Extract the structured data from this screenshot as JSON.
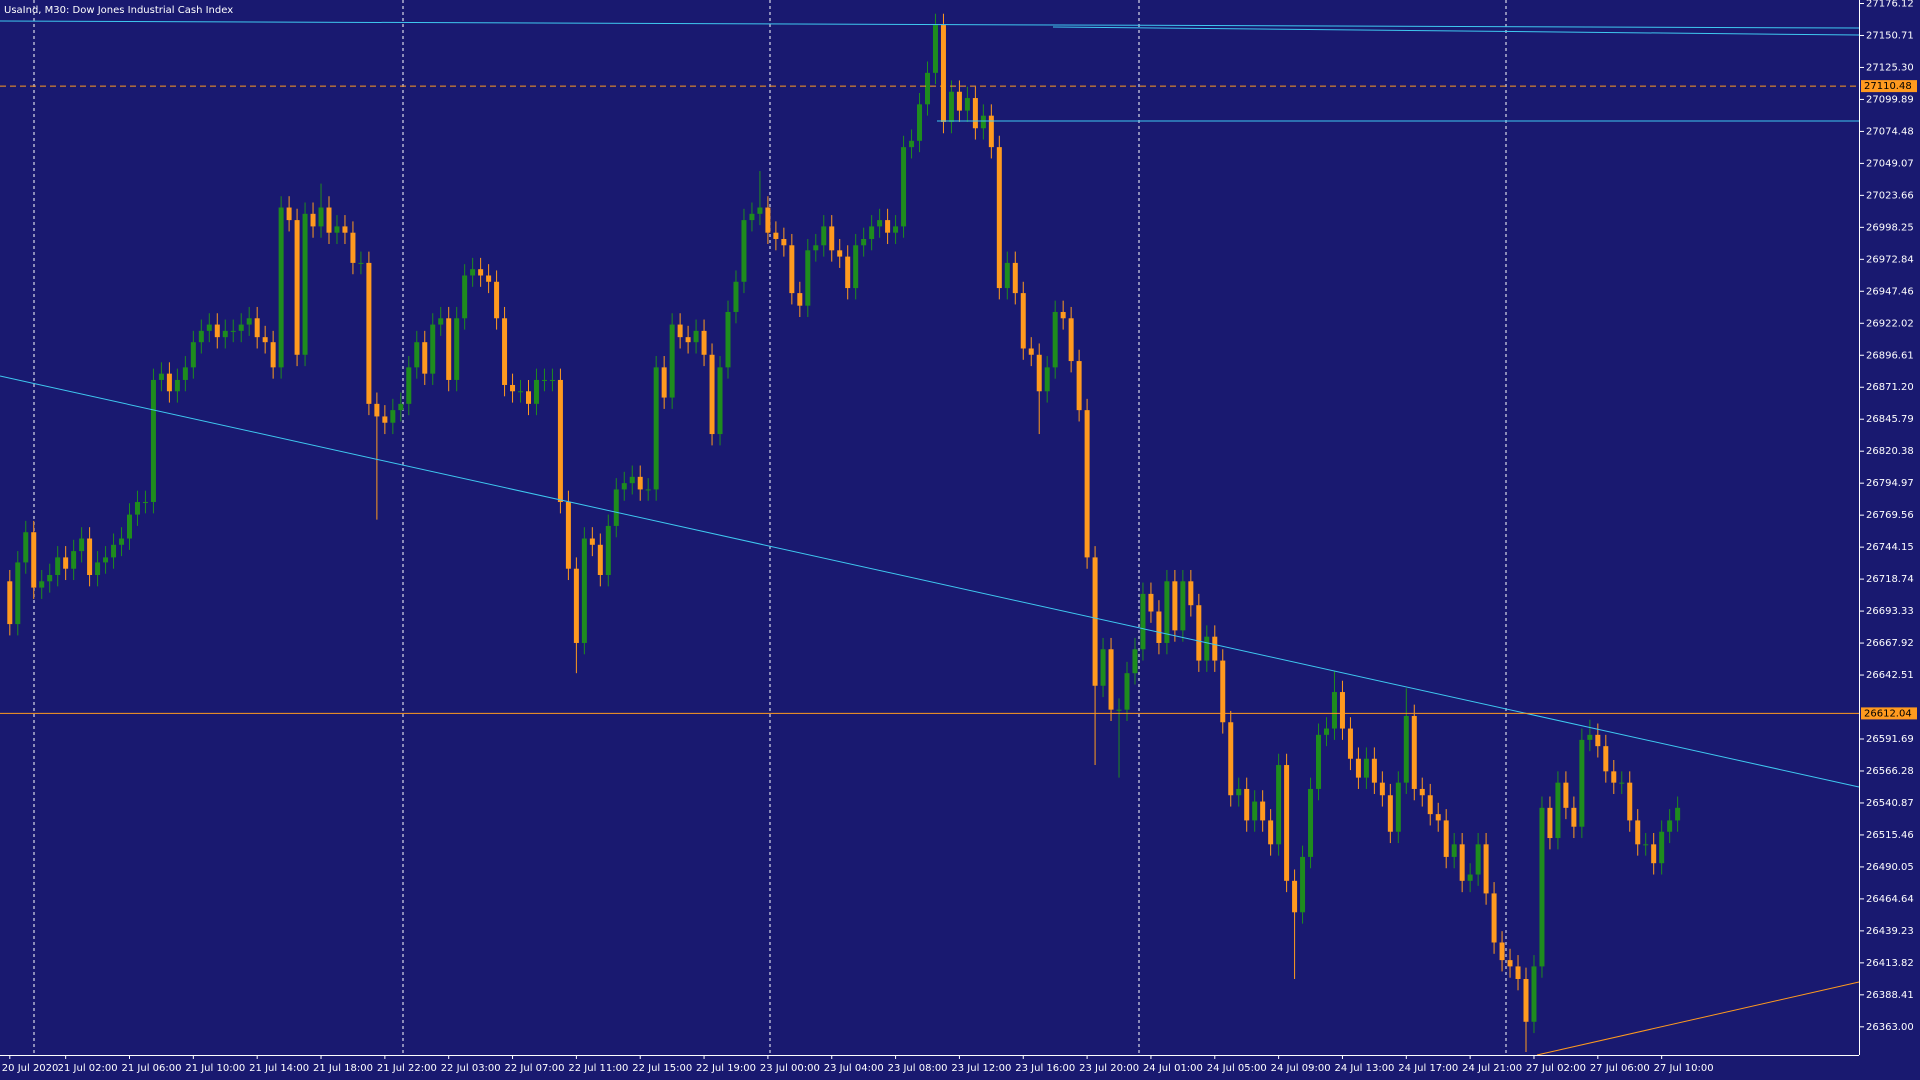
{
  "chart_data": {
    "type": "candlestick",
    "title": "UsaInd, M30:  Dow Jones Industrial Cash Index",
    "up_color": "#1e8c1e",
    "down_color": "#ff9a1f",
    "ylim": [
      26340.6,
      27178.9
    ],
    "yticks": [
      27176.12,
      27150.71,
      {
        "value": 27125.3,
        "label": "27125.30"
      },
      27099.89,
      27074.48,
      27049.07,
      27023.66,
      26998.25,
      26972.84,
      26947.46,
      26922.02,
      26896.61,
      {
        "value": 26871.2,
        "label": "26871.20"
      },
      26845.79,
      26820.38,
      26794.97,
      26769.56,
      26744.15,
      26718.74,
      26693.33,
      26667.92,
      26642.51,
      26591.69,
      26566.28,
      26540.87,
      26515.46,
      26490.05,
      26464.64,
      26439.23,
      26413.82,
      26388.41,
      {
        "value": 26363,
        "label": "26363.00"
      }
    ],
    "price_lines": [
      {
        "value": 27110.48,
        "style": "dashed",
        "color": "#ff9a1f"
      },
      {
        "value": 26612.04,
        "style": "solid",
        "color": "#ff9a1f"
      }
    ],
    "categories": [
      "20 Jul 2020",
      null,
      null,
      null,
      null,
      null,
      null,
      "21 Jul 02:00",
      null,
      null,
      null,
      null,
      null,
      null,
      null,
      "21 Jul 06:00",
      null,
      null,
      null,
      null,
      null,
      null,
      null,
      "21 Jul 10:00",
      null,
      null,
      null,
      null,
      null,
      null,
      null,
      "21 Jul 14:00",
      null,
      null,
      null,
      null,
      null,
      null,
      null,
      "21 Jul 18:00",
      null,
      null,
      null,
      null,
      null,
      null,
      null,
      "21 Jul 22:00",
      null,
      null,
      null,
      null,
      null,
      null,
      null,
      "22 Jul 03:00",
      null,
      null,
      null,
      null,
      null,
      null,
      null,
      "22 Jul 07:00",
      null,
      null,
      null,
      null,
      null,
      null,
      null,
      "22 Jul 11:00",
      null,
      null,
      null,
      null,
      null,
      null,
      null,
      "22 Jul 15:00",
      null,
      null,
      null,
      null,
      null,
      null,
      null,
      "22 Jul 19:00",
      null,
      null,
      null,
      null,
      null,
      null,
      null,
      "23 Jul 00:00",
      null,
      null,
      null,
      null,
      null,
      null,
      null,
      "23 Jul 04:00",
      null,
      null,
      null,
      null,
      null,
      null,
      null,
      "23 Jul 08:00",
      null,
      null,
      null,
      null,
      null,
      null,
      null,
      "23 Jul 12:00",
      null,
      null,
      null,
      null,
      null,
      null,
      null,
      "23 Jul 16:00",
      null,
      null,
      null,
      null,
      null,
      null,
      null,
      "23 Jul 20:00",
      null,
      null,
      null,
      null,
      null,
      null,
      null,
      "24 Jul 01:00",
      null,
      null,
      null,
      null,
      null,
      null,
      null,
      "24 Jul 05:00",
      null,
      null,
      null,
      null,
      null,
      null,
      null,
      "24 Jul 09:00",
      null,
      null,
      null,
      null,
      null,
      null,
      null,
      "24 Jul 13:00",
      null,
      null,
      null,
      null,
      null,
      null,
      null,
      "24 Jul 17:00",
      null,
      null,
      null,
      null,
      null,
      null,
      null,
      "24 Jul 21:00",
      null,
      null,
      null,
      null,
      null,
      null,
      null,
      "27 Jul 02:00",
      null,
      null,
      null,
      null,
      null,
      null,
      null,
      "27 Jul 06:00",
      null,
      null,
      null,
      null,
      null,
      null,
      null,
      "27 Jul 10:00",
      null,
      null
    ],
    "open": [
      26717,
      26683,
      26732,
      26756,
      26712,
      26717,
      26722,
      26736,
      26727,
      26741,
      26751,
      26722,
      26732,
      26736,
      26746,
      26751,
      26770,
      26780,
      26780,
      26877,
      26882,
      26868,
      26877,
      26887,
      26907,
      26916,
      26921,
      26911,
      26916,
      26916,
      26921,
      26926,
      26911,
      26907,
      26887,
      27014,
      27004,
      26897,
      27009,
      26999,
      27014,
      26994,
      26999,
      26994,
      26970,
      26970,
      26858,
      26848,
      26843,
      26853,
      26858,
      26887,
      26907,
      26882,
      26921,
      26926,
      26877,
      26926,
      26960,
      26965,
      26960,
      26955,
      26926,
      26873,
      26868,
      26868,
      26858,
      26877,
      26877,
      26877,
      26780,
      26727,
      26668,
      26751,
      26746,
      26722,
      26761,
      26790,
      26795,
      26800,
      26790,
      26790,
      26887,
      26863,
      26921,
      26911,
      26907,
      26916,
      26897,
      26834,
      26887,
      26931,
      26955,
      27004,
      27009,
      27014,
      26994,
      26989,
      26984,
      26946,
      26936,
      26980,
      26984,
      26999,
      26980,
      26975,
      26950,
      26984,
      26989,
      26999,
      27004,
      26994,
      26999,
      27062,
      27067,
      27096,
      27121,
      27159,
      27082,
      27106,
      27091,
      27101,
      27077,
      27087,
      27062,
      26950,
      26970,
      26946,
      26902,
      26897,
      26868,
      26887,
      26931,
      26926,
      26892,
      26853,
      26736,
      26634,
      26663,
      26615,
      26615,
      26644,
      26663,
      26707,
      26693,
      26668,
      26717,
      26678,
      26717,
      26698,
      26654,
      26673,
      26654,
      26605,
      26547,
      26552,
      26527,
      26542,
      26527,
      26508,
      26571,
      26479,
      26454,
      26498,
      26552,
      26595,
      26600,
      26629,
      26600,
      26576,
      26561,
      26576,
      26557,
      26547,
      26518,
      26557,
      26610,
      26552,
      26547,
      26532,
      26527,
      26498,
      26508,
      26479,
      26484,
      26508,
      26469,
      26430,
      26416,
      26411,
      26401,
      26367,
      26411,
      26537,
      26513,
      26557,
      26537,
      26522,
      26591,
      26595,
      26586,
      26566,
      26557,
      26557,
      26527,
      26508,
      26508,
      26493,
      26518,
      26527
    ],
    "high": [
      26726,
      26741,
      26765,
      26765,
      26726,
      26731,
      26745,
      26745,
      26750,
      26760,
      26760,
      26741,
      26745,
      26755,
      26760,
      26779,
      26789,
      26789,
      26886,
      26891,
      26891,
      26886,
      26896,
      26916,
      26925,
      26930,
      26930,
      26925,
      26925,
      26930,
      26935,
      26935,
      26920,
      26916,
      27023,
      27023,
      27013,
      27018,
      27018,
      27033,
      27023,
      27008,
      27008,
      27003,
      26979,
      26979,
      26867,
      26857,
      26862,
      26867,
      26896,
      26916,
      26916,
      26930,
      26935,
      26935,
      26935,
      26969,
      26974,
      26974,
      26969,
      26964,
      26935,
      26882,
      26877,
      26877,
      26886,
      26886,
      26886,
      26886,
      26789,
      26736,
      26760,
      26760,
      26755,
      26770,
      26799,
      26804,
      26809,
      26809,
      26799,
      26896,
      26896,
      26930,
      26930,
      26920,
      26925,
      26925,
      26906,
      26896,
      26940,
      26964,
      27013,
      27018,
      27043,
      27023,
      27003,
      26998,
      26993,
      26955,
      26989,
      26993,
      27008,
      27008,
      26989,
      26984,
      26993,
      26998,
      27008,
      27013,
      27013,
      27008,
      27071,
      27076,
      27105,
      27130,
      27168,
      27168,
      27115,
      27115,
      27110,
      27110,
      27096,
      27096,
      27071,
      26979,
      26979,
      26955,
      26911,
      26906,
      26896,
      26940,
      26940,
      26935,
      26901,
      26862,
      26745,
      26672,
      26672,
      26624,
      26653,
      26672,
      26716,
      26716,
      26702,
      26726,
      26726,
      26726,
      26726,
      26707,
      26682,
      26682,
      26663,
      26614,
      26561,
      26561,
      26551,
      26551,
      26536,
      26580,
      26580,
      26488,
      26507,
      26561,
      26604,
      26609,
      26646,
      26638,
      26609,
      26585,
      26585,
      26585,
      26566,
      26556,
      26566,
      26632,
      26619,
      26561,
      26556,
      26541,
      26536,
      26517,
      26517,
      26493,
      26517,
      26517,
      26478,
      26439,
      26425,
      26420,
      26410,
      26420,
      26546,
      26546,
      26566,
      26566,
      26546,
      26600,
      26607,
      26604,
      26595,
      26575,
      26566,
      26566,
      26536,
      26517,
      26517,
      26527,
      26536,
      26546
    ],
    "low": [
      26674,
      26674,
      26723,
      26703,
      26703,
      26708,
      26713,
      26718,
      26718,
      26732,
      26713,
      26713,
      26723,
      26727,
      26737,
      26742,
      26761,
      26771,
      26771,
      26868,
      26859,
      26859,
      26868,
      26878,
      26898,
      26907,
      26902,
      26902,
      26907,
      26907,
      26912,
      26902,
      26898,
      26878,
      26878,
      26995,
      26888,
      26888,
      26990,
      26990,
      26985,
      26985,
      26985,
      26961,
      26961,
      26849,
      26766,
      26834,
      26834,
      26844,
      26849,
      26878,
      26873,
      26873,
      26912,
      26868,
      26868,
      26917,
      26951,
      26951,
      26946,
      26917,
      26864,
      26859,
      26859,
      26849,
      26849,
      26868,
      26868,
      26771,
      26718,
      26644,
      26659,
      26737,
      26713,
      26713,
      26752,
      26781,
      26786,
      26781,
      26781,
      26781,
      26854,
      26854,
      26902,
      26898,
      26898,
      26888,
      26825,
      26825,
      26878,
      26922,
      26946,
      26995,
      27000,
      26985,
      26980,
      26975,
      26937,
      26927,
      26927,
      26971,
      26975,
      26971,
      26966,
      26941,
      26941,
      26975,
      26980,
      26990,
      26985,
      26985,
      26990,
      27053,
      27058,
      27087,
      27112,
      27073,
      27073,
      27082,
      27082,
      27068,
      27068,
      27053,
      26941,
      26941,
      26937,
      26893,
      26888,
      26834,
      26859,
      26878,
      26917,
      26883,
      26844,
      26727,
      26571,
      26625,
      26606,
      26561,
      26606,
      26635,
      26654,
      26684,
      26659,
      26659,
      26669,
      26669,
      26689,
      26645,
      26645,
      26645,
      26596,
      26538,
      26538,
      26518,
      26518,
      26518,
      26499,
      26499,
      26470,
      26401,
      26445,
      26489,
      26543,
      26586,
      26591,
      26591,
      26567,
      26552,
      26552,
      26548,
      26538,
      26509,
      26509,
      26548,
      26543,
      26538,
      26523,
      26518,
      26489,
      26489,
      26470,
      26470,
      26475,
      26460,
      26421,
      26407,
      26402,
      26392,
      26343,
      26358,
      26402,
      26504,
      26504,
      26528,
      26513,
      26513,
      26582,
      26577,
      26557,
      26548,
      26548,
      26518,
      26499,
      26499,
      26484,
      26484,
      26509,
      26518
    ],
    "close": [
      26683,
      26732,
      26756,
      26712,
      26717,
      26722,
      26736,
      26727,
      26741,
      26751,
      26722,
      26732,
      26736,
      26746,
      26751,
      26770,
      26780,
      26780,
      26877,
      26882,
      26868,
      26877,
      26887,
      26907,
      26916,
      26921,
      26911,
      26916,
      26916,
      26921,
      26926,
      26911,
      26907,
      26887,
      27014,
      27004,
      26897,
      27009,
      26999,
      27014,
      26994,
      26999,
      26994,
      26970,
      26970,
      26858,
      26848,
      26843,
      26853,
      26858,
      26887,
      26907,
      26882,
      26921,
      26926,
      26877,
      26926,
      26960,
      26965,
      26960,
      26955,
      26926,
      26873,
      26868,
      26868,
      26858,
      26877,
      26877,
      26877,
      26780,
      26727,
      26668,
      26751,
      26746,
      26722,
      26761,
      26790,
      26795,
      26800,
      26790,
      26790,
      26887,
      26863,
      26921,
      26911,
      26907,
      26916,
      26897,
      26834,
      26887,
      26931,
      26955,
      27004,
      27009,
      27014,
      26994,
      26989,
      26984,
      26946,
      26936,
      26980,
      26984,
      26999,
      26980,
      26975,
      26950,
      26984,
      26989,
      26999,
      27004,
      26994,
      26999,
      27062,
      27067,
      27096,
      27121,
      27159,
      27082,
      27106,
      27091,
      27101,
      27077,
      27087,
      27062,
      26950,
      26970,
      26946,
      26902,
      26897,
      26868,
      26887,
      26931,
      26926,
      26892,
      26853,
      26736,
      26634,
      26663,
      26615,
      26615,
      26644,
      26663,
      26707,
      26693,
      26668,
      26717,
      26678,
      26717,
      26698,
      26654,
      26673,
      26654,
      26605,
      26547,
      26552,
      26527,
      26542,
      26527,
      26508,
      26571,
      26479,
      26454,
      26498,
      26552,
      26595,
      26600,
      26629,
      26600,
      26576,
      26561,
      26576,
      26557,
      26547,
      26518,
      26557,
      26610,
      26552,
      26547,
      26532,
      26527,
      26498,
      26508,
      26479,
      26484,
      26508,
      26469,
      26430,
      26416,
      26411,
      26401,
      26367,
      26411,
      26537,
      26513,
      26557,
      26537,
      26522,
      26591,
      26595,
      26586,
      26566,
      26557,
      26557,
      26527,
      26508,
      26508,
      26493,
      26518,
      26527,
      26537
    ]
  }
}
